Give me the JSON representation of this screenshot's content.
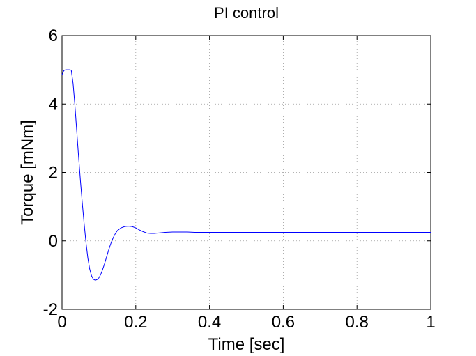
{
  "chart_data": {
    "type": "line",
    "title": "PI control",
    "xlabel": "Time [sec]",
    "ylabel": "Torque [mNm]",
    "xlim": [
      0,
      1
    ],
    "ylim": [
      -2,
      6
    ],
    "xticks": [
      0,
      0.2,
      0.4,
      0.6,
      0.8,
      1
    ],
    "xtick_labels": [
      "0",
      "0.2",
      "0.4",
      "0.6",
      "0.8",
      "1"
    ],
    "yticks": [
      -2,
      0,
      2,
      4,
      6
    ],
    "ytick_labels": [
      "-2",
      "0",
      "2",
      "4",
      "6"
    ],
    "grid": true,
    "series": [
      {
        "color": "#0000ff",
        "x": [
          0,
          0.005,
          0.01,
          0.015,
          0.02,
          0.025,
          0.03,
          0.035,
          0.04,
          0.045,
          0.05,
          0.055,
          0.06,
          0.065,
          0.07,
          0.075,
          0.08,
          0.085,
          0.09,
          0.095,
          0.1,
          0.105,
          0.11,
          0.115,
          0.12,
          0.125,
          0.13,
          0.135,
          0.14,
          0.145,
          0.15,
          0.16,
          0.17,
          0.18,
          0.19,
          0.2,
          0.21,
          0.22,
          0.23,
          0.24,
          0.25,
          0.26,
          0.27,
          0.28,
          0.3,
          0.32,
          0.34,
          0.36,
          0.38,
          0.4,
          0.45,
          0.5,
          0.6,
          0.7,
          0.8,
          0.9,
          1.0
        ],
        "y": [
          4.85,
          4.98,
          5.0,
          5.0,
          5.0,
          4.99,
          4.6,
          3.95,
          3.2,
          2.45,
          1.75,
          1.1,
          0.5,
          -0.05,
          -0.5,
          -0.82,
          -1.02,
          -1.12,
          -1.15,
          -1.13,
          -1.08,
          -0.98,
          -0.84,
          -0.68,
          -0.5,
          -0.32,
          -0.15,
          0.0,
          0.12,
          0.22,
          0.3,
          0.38,
          0.42,
          0.43,
          0.42,
          0.38,
          0.32,
          0.27,
          0.23,
          0.22,
          0.22,
          0.23,
          0.24,
          0.25,
          0.26,
          0.26,
          0.26,
          0.25,
          0.25,
          0.25,
          0.25,
          0.25,
          0.25,
          0.25,
          0.25,
          0.25,
          0.25
        ]
      }
    ]
  }
}
